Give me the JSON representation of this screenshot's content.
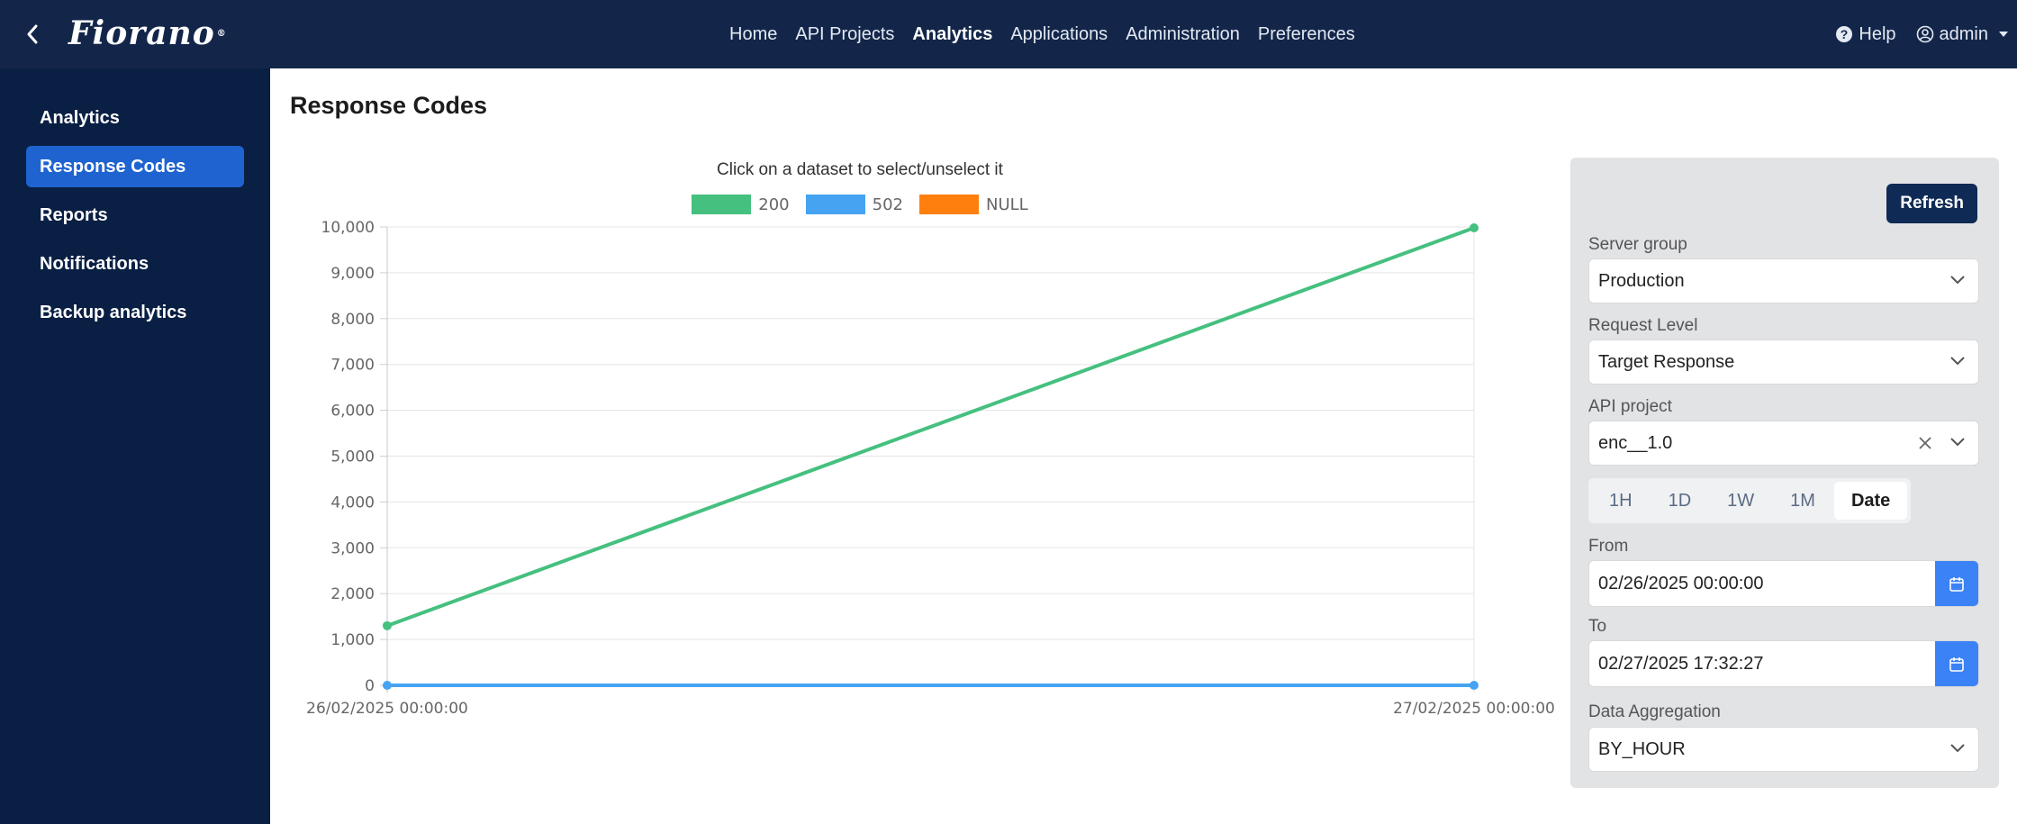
{
  "header": {
    "logo_text": "Fiorano",
    "logo_mark": "®",
    "nav": [
      "Home",
      "API Projects",
      "Analytics",
      "Applications",
      "Administration",
      "Preferences"
    ],
    "active_nav": "Analytics",
    "help_label": "Help",
    "user_label": "admin"
  },
  "sidebar": {
    "items": [
      {
        "label": "Analytics"
      },
      {
        "label": "Response Codes"
      },
      {
        "label": "Reports"
      },
      {
        "label": "Notifications"
      },
      {
        "label": "Backup analytics"
      }
    ],
    "active": "Response Codes"
  },
  "page": {
    "title": "Response Codes"
  },
  "chart": {
    "hint": "Click on a dataset to select/unselect it"
  },
  "chart_data": {
    "type": "line",
    "x": [
      "26/02/2025 00:00:00",
      "27/02/2025 00:00:00"
    ],
    "series": [
      {
        "name": "200",
        "color": "#45c07f",
        "values": [
          1300,
          9980
        ]
      },
      {
        "name": "502",
        "color": "#45a3f2",
        "values": [
          0,
          0
        ]
      },
      {
        "name": "NULL",
        "color": "#ff7f0e",
        "values": [
          null,
          null
        ]
      }
    ],
    "ylim": [
      0,
      10000
    ],
    "yticks": [
      "0",
      "1,000",
      "2,000",
      "3,000",
      "4,000",
      "5,000",
      "6,000",
      "7,000",
      "8,000",
      "9,000",
      "10,000"
    ],
    "grid": true,
    "legend_position": "top-center"
  },
  "filters": {
    "refresh_label": "Refresh",
    "server_group_label": "Server group",
    "server_group_value": "Production",
    "request_level_label": "Request Level",
    "request_level_value": "Target Response",
    "api_project_label": "API project",
    "api_project_value": "enc__1.0",
    "ranges": [
      "1H",
      "1D",
      "1W",
      "1M",
      "Date"
    ],
    "active_range": "Date",
    "from_label": "From",
    "from_value": "02/26/2025 00:00:00",
    "to_label": "To",
    "to_value": "02/27/2025 17:32:27",
    "aggregation_label": "Data Aggregation",
    "aggregation_value": "BY_HOUR"
  },
  "colors": {
    "navbar": "#13264a",
    "sidebar": "#0a1f44",
    "sidebar_active": "#1f63d0",
    "refresh": "#0f2a54",
    "calendar_button": "#3b82f6"
  }
}
